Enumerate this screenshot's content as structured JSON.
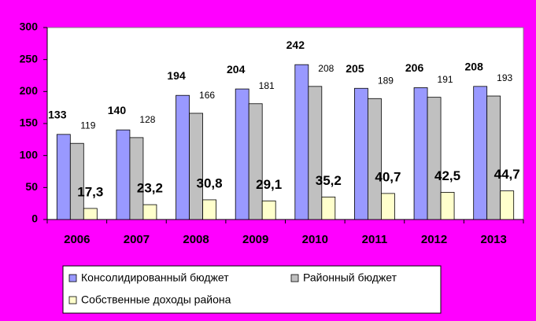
{
  "chart_data": {
    "type": "bar",
    "categories": [
      "2006",
      "2007",
      "2008",
      "2009",
      "2010",
      "2011",
      "2012",
      "2013"
    ],
    "series": [
      {
        "name": "Консолидированный бюджет",
        "color": "#9999ff",
        "values": [
          133,
          140,
          194,
          204,
          242,
          205,
          206,
          208
        ]
      },
      {
        "name": "Районный бюджет",
        "color": "#c0c0c0",
        "values": [
          119,
          128,
          166,
          181,
          208,
          189,
          191,
          193
        ]
      },
      {
        "name": "Собственные доходы района",
        "color": "#ffffcc",
        "values": [
          17.3,
          23.2,
          30.8,
          29.1,
          35.2,
          40.7,
          42.5,
          44.7
        ],
        "value_labels": [
          "17,3",
          "23,2",
          "30,8",
          "29,1",
          "35,2",
          "40,7",
          "42,5",
          "44,7"
        ]
      }
    ],
    "ylim": [
      0,
      300
    ],
    "yticks": [
      0,
      50,
      100,
      150,
      200,
      250,
      300
    ]
  }
}
